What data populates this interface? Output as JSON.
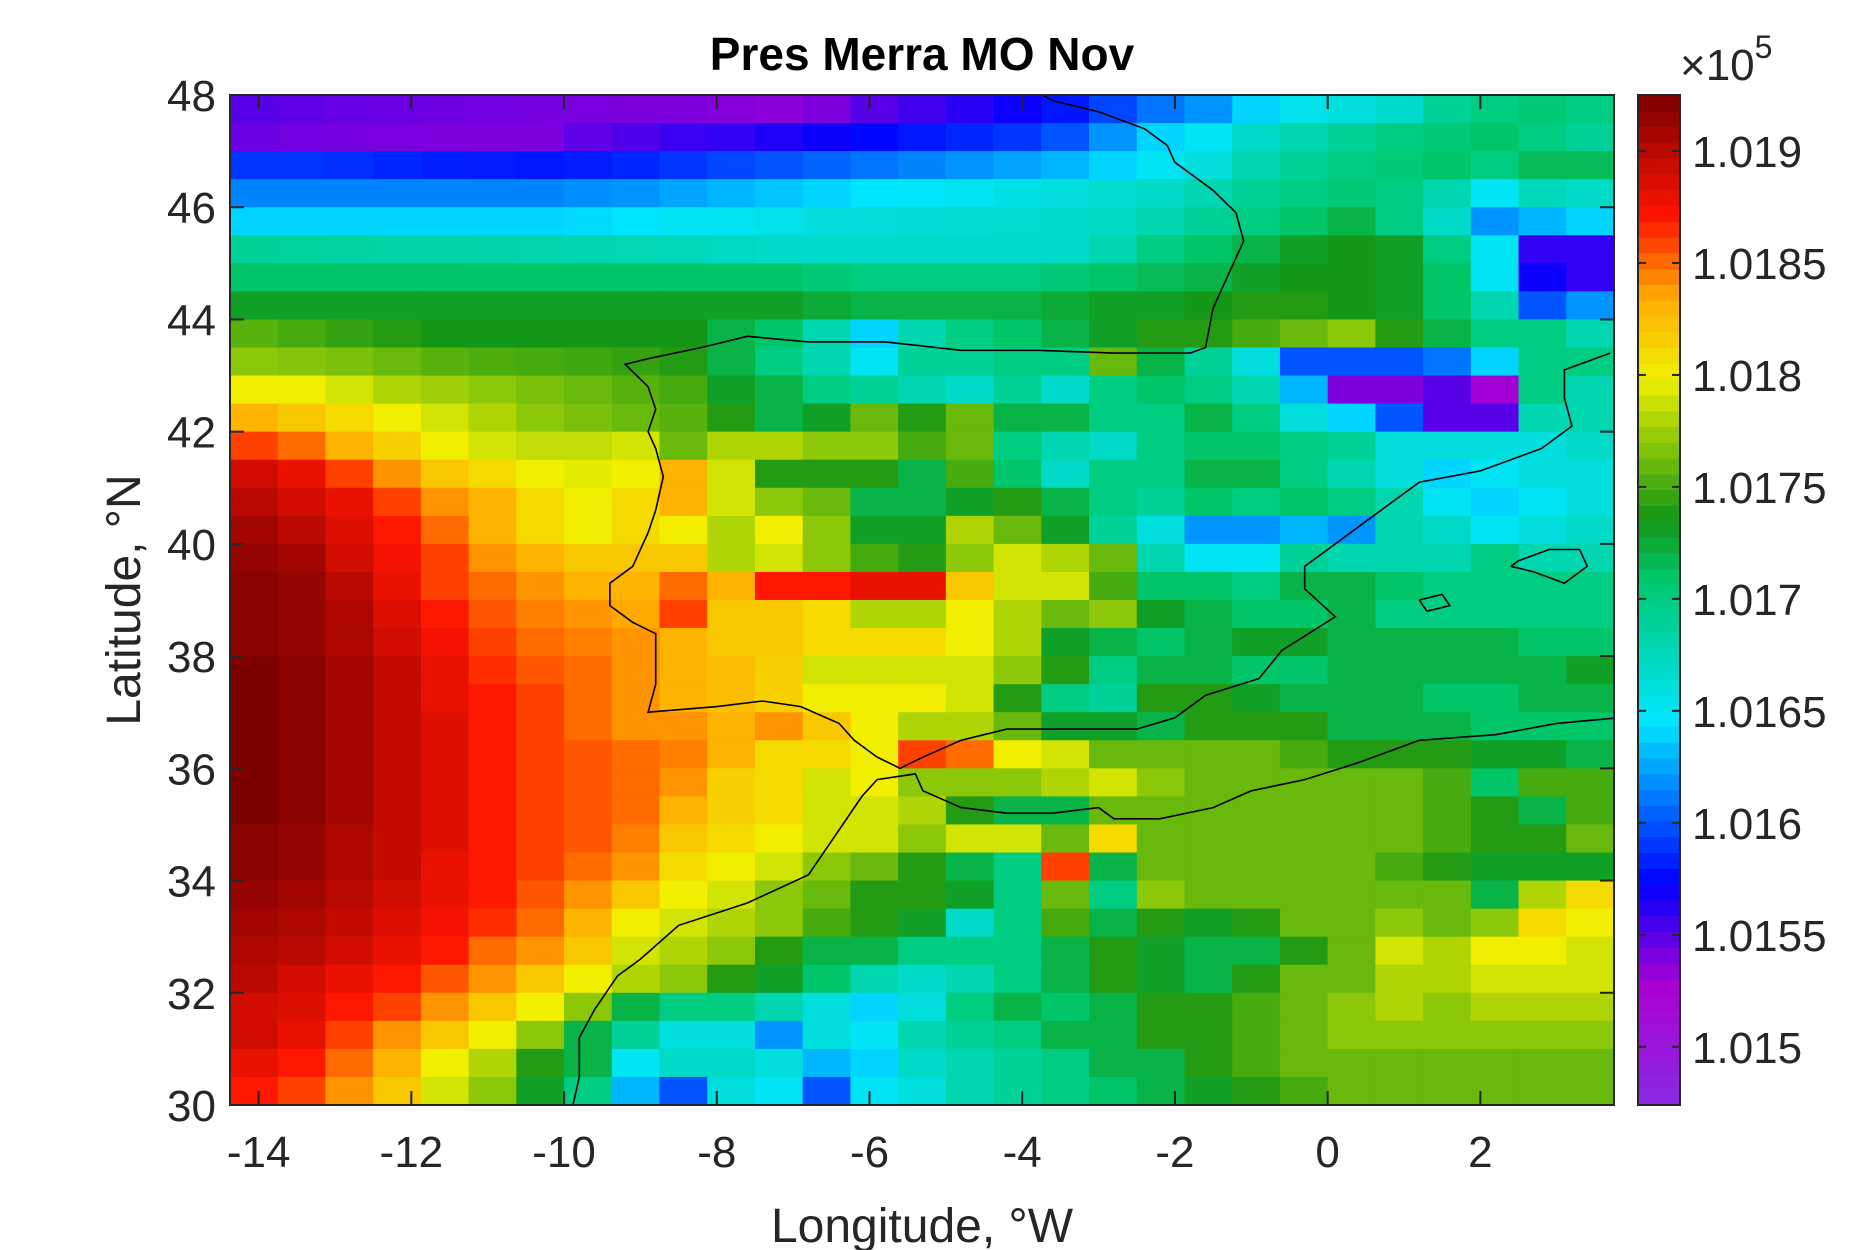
{
  "chart_data": {
    "type": "heatmap",
    "title": "Pres Merra MO Nov",
    "xlabel": "Longitude, °W",
    "ylabel": "Latitude, °N",
    "xlim": [
      -14.375,
      3.75
    ],
    "ylim": [
      30,
      48
    ],
    "xticks": [
      -14,
      -12,
      -10,
      -8,
      -6,
      -4,
      -2,
      0,
      2
    ],
    "xtick_labels": [
      "-14",
      "-12",
      "-10",
      "-8",
      "-6",
      "-4",
      "-2",
      "0",
      "2"
    ],
    "yticks": [
      30,
      32,
      34,
      36,
      38,
      40,
      42,
      44,
      46,
      48
    ],
    "ytick_labels": [
      "30",
      "32",
      "34",
      "36",
      "38",
      "40",
      "42",
      "44",
      "46",
      "48"
    ],
    "grid": false,
    "colormap": "jet-like (purple to dark red)",
    "colorbar": {
      "clim": [
        101474,
        101925
      ],
      "ticks": [
        101500,
        101550,
        101600,
        101650,
        101700,
        101750,
        101800,
        101850,
        101900
      ],
      "tick_labels": [
        "1.015",
        "1.0155",
        "1.016",
        "1.0165",
        "1.017",
        "1.0175",
        "1.018",
        "1.0185",
        "1.019"
      ],
      "exponent_base": "×10",
      "exponent_power": "5"
    },
    "overlay": "coastline",
    "grid_resolution": {
      "lon_step": 0.625,
      "lat_step": 0.5
    },
    "lon_centers": [
      -14.0625,
      -13.4375,
      -12.8125,
      -12.1875,
      -11.5625,
      -10.9375,
      -10.3125,
      -9.6875,
      -9.0625,
      -8.4375,
      -7.8125,
      -7.1875,
      -6.5625,
      -5.9375,
      -5.3125,
      -4.6875,
      -4.0625,
      -3.4375,
      -2.8125,
      -2.1875,
      -1.5625,
      -0.9375,
      -0.3125,
      0.3125,
      0.9375,
      1.5625,
      2.1875,
      2.8125,
      3.4375
    ],
    "lat_centers_top_down": [
      47.75,
      47.25,
      46.75,
      46.25,
      45.75,
      45.25,
      44.75,
      44.25,
      43.75,
      43.25,
      42.75,
      42.25,
      41.75,
      41.25,
      40.75,
      40.25,
      39.75,
      39.25,
      38.75,
      38.25,
      37.75,
      37.25,
      36.75,
      36.25,
      35.75,
      35.25,
      34.75,
      34.25,
      33.75,
      33.25,
      32.75,
      32.25,
      31.75,
      31.25,
      30.75,
      30.25
    ],
    "values": [
      [
        101550,
        101548,
        101546,
        101545,
        101544,
        101543,
        101542,
        101541,
        101540,
        101540,
        101538,
        101536,
        101540,
        101550,
        101556,
        101562,
        101570,
        101580,
        101595,
        101610,
        101620,
        101640,
        101655,
        101660,
        101668,
        101690,
        101700,
        101705,
        101700
      ],
      [
        101545,
        101543,
        101542,
        101541,
        101540,
        101540,
        101540,
        101548,
        101552,
        101558,
        101560,
        101565,
        101570,
        101575,
        101580,
        101585,
        101590,
        101600,
        101620,
        101640,
        101650,
        101670,
        101680,
        101690,
        101700,
        101705,
        101710,
        101700,
        101690
      ],
      [
        101590,
        101590,
        101588,
        101585,
        101583,
        101582,
        101580,
        101582,
        101585,
        101590,
        101595,
        101600,
        101605,
        101610,
        101615,
        101620,
        101625,
        101630,
        101640,
        101650,
        101660,
        101680,
        101690,
        101700,
        101705,
        101710,
        101700,
        101715,
        101715
      ],
      [
        101615,
        101615,
        101615,
        101615,
        101615,
        101615,
        101615,
        101618,
        101620,
        101625,
        101630,
        101635,
        101640,
        101645,
        101648,
        101652,
        101656,
        101660,
        101665,
        101670,
        101680,
        101690,
        101700,
        101705,
        101700,
        101680,
        101650,
        101675,
        101670
      ],
      [
        101640,
        101640,
        101640,
        101640,
        101640,
        101640,
        101640,
        101642,
        101645,
        101650,
        101652,
        101655,
        101660,
        101662,
        101664,
        101665,
        101666,
        101668,
        101672,
        101680,
        101690,
        101700,
        101710,
        101720,
        101700,
        101670,
        101620,
        101630,
        101640
      ],
      [
        101690,
        101688,
        101686,
        101685,
        101684,
        101683,
        101682,
        101680,
        101678,
        101675,
        101672,
        101670,
        101668,
        101668,
        101668,
        101668,
        101668,
        101670,
        101680,
        101700,
        101710,
        101720,
        101730,
        101735,
        101730,
        101700,
        101650,
        101560,
        101560
      ],
      [
        101710,
        101710,
        101710,
        101710,
        101710,
        101710,
        101710,
        101710,
        101710,
        101710,
        101710,
        101710,
        101705,
        101700,
        101700,
        101700,
        101700,
        101705,
        101710,
        101715,
        101720,
        101730,
        101735,
        101735,
        101730,
        101710,
        101650,
        101570,
        101560
      ],
      [
        101730,
        101730,
        101730,
        101730,
        101730,
        101730,
        101730,
        101730,
        101730,
        101730,
        101730,
        101730,
        101725,
        101720,
        101720,
        101720,
        101720,
        101725,
        101730,
        101730,
        101735,
        101740,
        101740,
        101735,
        101730,
        101710,
        101680,
        101600,
        101620
      ],
      [
        101755,
        101750,
        101745,
        101740,
        101735,
        101735,
        101735,
        101735,
        101735,
        101735,
        101720,
        101710,
        101680,
        101640,
        101680,
        101700,
        101710,
        101720,
        101730,
        101740,
        101740,
        101750,
        101760,
        101770,
        101740,
        101720,
        101700,
        101700,
        101680
      ],
      [
        101770,
        101768,
        101765,
        101760,
        101755,
        101752,
        101750,
        101748,
        101745,
        101740,
        101720,
        101700,
        101680,
        101650,
        101690,
        101690,
        101700,
        101700,
        101760,
        101720,
        101690,
        101660,
        101600,
        101600,
        101600,
        101610,
        101640,
        101700,
        101700
      ],
      [
        101800,
        101800,
        101790,
        101780,
        101775,
        101770,
        101765,
        101760,
        101755,
        101750,
        101730,
        101720,
        101700,
        101690,
        101680,
        101670,
        101690,
        101670,
        101700,
        101710,
        101700,
        101680,
        101630,
        101540,
        101540,
        101550,
        101530,
        101700,
        101680
      ],
      [
        101830,
        101820,
        101810,
        101800,
        101790,
        101780,
        101770,
        101765,
        101760,
        101755,
        101740,
        101720,
        101730,
        101760,
        101740,
        101760,
        101720,
        101720,
        101700,
        101700,
        101720,
        101700,
        101660,
        101640,
        101600,
        101550,
        101550,
        101680,
        101680
      ],
      [
        101860,
        101850,
        101830,
        101815,
        101800,
        101790,
        101785,
        101785,
        101790,
        101760,
        101780,
        101780,
        101770,
        101770,
        101750,
        101760,
        101700,
        101680,
        101670,
        101700,
        101710,
        101710,
        101700,
        101690,
        101660,
        101660,
        101660,
        101660,
        101670
      ],
      [
        101890,
        101880,
        101860,
        101840,
        101820,
        101810,
        101800,
        101795,
        101800,
        101830,
        101790,
        101740,
        101740,
        101740,
        101720,
        101750,
        101710,
        101670,
        101700,
        101700,
        101720,
        101720,
        101700,
        101680,
        101660,
        101640,
        101650,
        101660,
        101660
      ],
      [
        101900,
        101890,
        101880,
        101860,
        101840,
        101830,
        101810,
        101800,
        101810,
        101830,
        101790,
        101770,
        101760,
        101720,
        101720,
        101730,
        101740,
        101720,
        101700,
        101690,
        101710,
        101700,
        101710,
        101700,
        101680,
        101650,
        101640,
        101650,
        101660
      ],
      [
        101910,
        101900,
        101885,
        101870,
        101850,
        101830,
        101810,
        101800,
        101810,
        101800,
        101780,
        101800,
        101770,
        101730,
        101730,
        101780,
        101760,
        101730,
        101690,
        101660,
        101620,
        101620,
        101630,
        101620,
        101680,
        101670,
        101650,
        101660,
        101670
      ],
      [
        101915,
        101910,
        101890,
        101875,
        101860,
        101840,
        101830,
        101820,
        101820,
        101820,
        101780,
        101790,
        101770,
        101750,
        101740,
        101770,
        101790,
        101780,
        101760,
        101680,
        101650,
        101650,
        101690,
        101680,
        101680,
        101680,
        101700,
        101680,
        101680
      ],
      [
        101920,
        101915,
        101900,
        101880,
        101860,
        101850,
        101840,
        101830,
        101830,
        101850,
        101830,
        101870,
        101870,
        101880,
        101880,
        101820,
        101790,
        101790,
        101750,
        101710,
        101710,
        101700,
        101720,
        101720,
        101710,
        101700,
        101700,
        101700,
        101700
      ],
      [
        101920,
        101915,
        101905,
        101885,
        101870,
        101855,
        101845,
        101840,
        101835,
        101860,
        101820,
        101820,
        101810,
        101780,
        101780,
        101800,
        101780,
        101760,
        101770,
        101730,
        101720,
        101710,
        101710,
        101720,
        101700,
        101700,
        101700,
        101700,
        101700
      ],
      [
        101920,
        101915,
        101905,
        101890,
        101875,
        101860,
        101850,
        101845,
        101840,
        101830,
        101820,
        101820,
        101810,
        101810,
        101810,
        101800,
        101780,
        101730,
        101720,
        101710,
        101720,
        101730,
        101730,
        101720,
        101720,
        101720,
        101720,
        101710,
        101710
      ],
      [
        101925,
        101920,
        101910,
        101895,
        101880,
        101865,
        101855,
        101850,
        101840,
        101830,
        101825,
        101815,
        101790,
        101790,
        101790,
        101790,
        101770,
        101740,
        101700,
        101720,
        101720,
        101710,
        101710,
        101720,
        101720,
        101720,
        101720,
        101720,
        101730
      ],
      [
        101925,
        101920,
        101910,
        101895,
        101880,
        101870,
        101860,
        101850,
        101840,
        101830,
        101825,
        101815,
        101800,
        101800,
        101800,
        101790,
        101740,
        101700,
        101690,
        101740,
        101740,
        101730,
        101720,
        101720,
        101720,
        101710,
        101710,
        101720,
        101720
      ],
      [
        101925,
        101920,
        101910,
        101895,
        101885,
        101870,
        101860,
        101850,
        101840,
        101840,
        101830,
        101840,
        101820,
        101800,
        101780,
        101780,
        101760,
        101730,
        101730,
        101720,
        101740,
        101740,
        101740,
        101720,
        101720,
        101720,
        101710,
        101710,
        101710
      ],
      [
        101925,
        101920,
        101910,
        101895,
        101885,
        101870,
        101860,
        101855,
        101850,
        101845,
        101830,
        101810,
        101810,
        101800,
        101860,
        101850,
        101800,
        101790,
        101760,
        101760,
        101760,
        101760,
        101750,
        101740,
        101740,
        101740,
        101730,
        101730,
        101720
      ],
      [
        101925,
        101920,
        101910,
        101895,
        101885,
        101870,
        101860,
        101855,
        101850,
        101840,
        101815,
        101810,
        101790,
        101800,
        101770,
        101770,
        101770,
        101780,
        101790,
        101770,
        101760,
        101760,
        101760,
        101760,
        101760,
        101750,
        101710,
        101750,
        101750
      ],
      [
        101925,
        101920,
        101910,
        101895,
        101885,
        101870,
        101860,
        101855,
        101850,
        101830,
        101815,
        101810,
        101790,
        101790,
        101780,
        101740,
        101720,
        101720,
        101760,
        101760,
        101760,
        101760,
        101760,
        101760,
        101760,
        101750,
        101740,
        101720,
        101750
      ],
      [
        101920,
        101915,
        101905,
        101895,
        101885,
        101870,
        101860,
        101855,
        101845,
        101820,
        101810,
        101800,
        101790,
        101790,
        101770,
        101790,
        101790,
        101760,
        101810,
        101760,
        101760,
        101760,
        101760,
        101760,
        101760,
        101750,
        101740,
        101740,
        101760
      ],
      [
        101920,
        101915,
        101905,
        101895,
        101880,
        101870,
        101860,
        101850,
        101840,
        101810,
        101800,
        101790,
        101770,
        101760,
        101740,
        101720,
        101700,
        101860,
        101720,
        101760,
        101760,
        101760,
        101760,
        101760,
        101750,
        101740,
        101730,
        101730,
        101730
      ],
      [
        101915,
        101910,
        101900,
        101890,
        101880,
        101870,
        101855,
        101840,
        101820,
        101800,
        101790,
        101770,
        101760,
        101740,
        101740,
        101730,
        101700,
        101760,
        101700,
        101770,
        101760,
        101760,
        101760,
        101760,
        101760,
        101760,
        101720,
        101780,
        101810
      ],
      [
        101910,
        101905,
        101895,
        101885,
        101875,
        101865,
        101850,
        101830,
        101800,
        101790,
        101780,
        101770,
        101750,
        101740,
        101730,
        101670,
        101700,
        101750,
        101720,
        101740,
        101730,
        101740,
        101760,
        101760,
        101770,
        101760,
        101770,
        101810,
        101800
      ],
      [
        101905,
        101900,
        101890,
        101880,
        101870,
        101850,
        101840,
        101820,
        101790,
        101780,
        101770,
        101740,
        101720,
        101720,
        101700,
        101700,
        101700,
        101720,
        101740,
        101730,
        101720,
        101720,
        101740,
        101760,
        101790,
        101780,
        101800,
        101800,
        101790
      ],
      [
        101900,
        101890,
        101880,
        101870,
        101855,
        101840,
        101820,
        101800,
        101780,
        101770,
        101740,
        101730,
        101710,
        101680,
        101670,
        101680,
        101700,
        101720,
        101740,
        101730,
        101720,
        101740,
        101760,
        101760,
        101780,
        101780,
        101790,
        101790,
        101790
      ],
      [
        101890,
        101885,
        101870,
        101860,
        101840,
        101820,
        101800,
        101770,
        101720,
        101700,
        101700,
        101680,
        101660,
        101640,
        101660,
        101700,
        101720,
        101710,
        101720,
        101740,
        101740,
        101750,
        101760,
        101770,
        101780,
        101770,
        101780,
        101780,
        101780
      ],
      [
        101890,
        101880,
        101860,
        101840,
        101820,
        101800,
        101770,
        101720,
        101690,
        101660,
        101660,
        101620,
        101660,
        101650,
        101680,
        101690,
        101700,
        101720,
        101720,
        101740,
        101740,
        101750,
        101760,
        101770,
        101770,
        101770,
        101770,
        101770,
        101770
      ],
      [
        101880,
        101870,
        101850,
        101830,
        101800,
        101780,
        101740,
        101720,
        101650,
        101670,
        101670,
        101660,
        101630,
        101640,
        101670,
        101680,
        101690,
        101700,
        101720,
        101720,
        101740,
        101750,
        101760,
        101760,
        101760,
        101760,
        101760,
        101760,
        101760
      ],
      [
        101870,
        101860,
        101840,
        101820,
        101790,
        101770,
        101730,
        101700,
        101630,
        101600,
        101660,
        101650,
        101600,
        101650,
        101660,
        101680,
        101690,
        101700,
        101710,
        101720,
        101730,
        101740,
        101750,
        101760,
        101760,
        101760,
        101760,
        101760,
        101760
      ]
    ]
  }
}
